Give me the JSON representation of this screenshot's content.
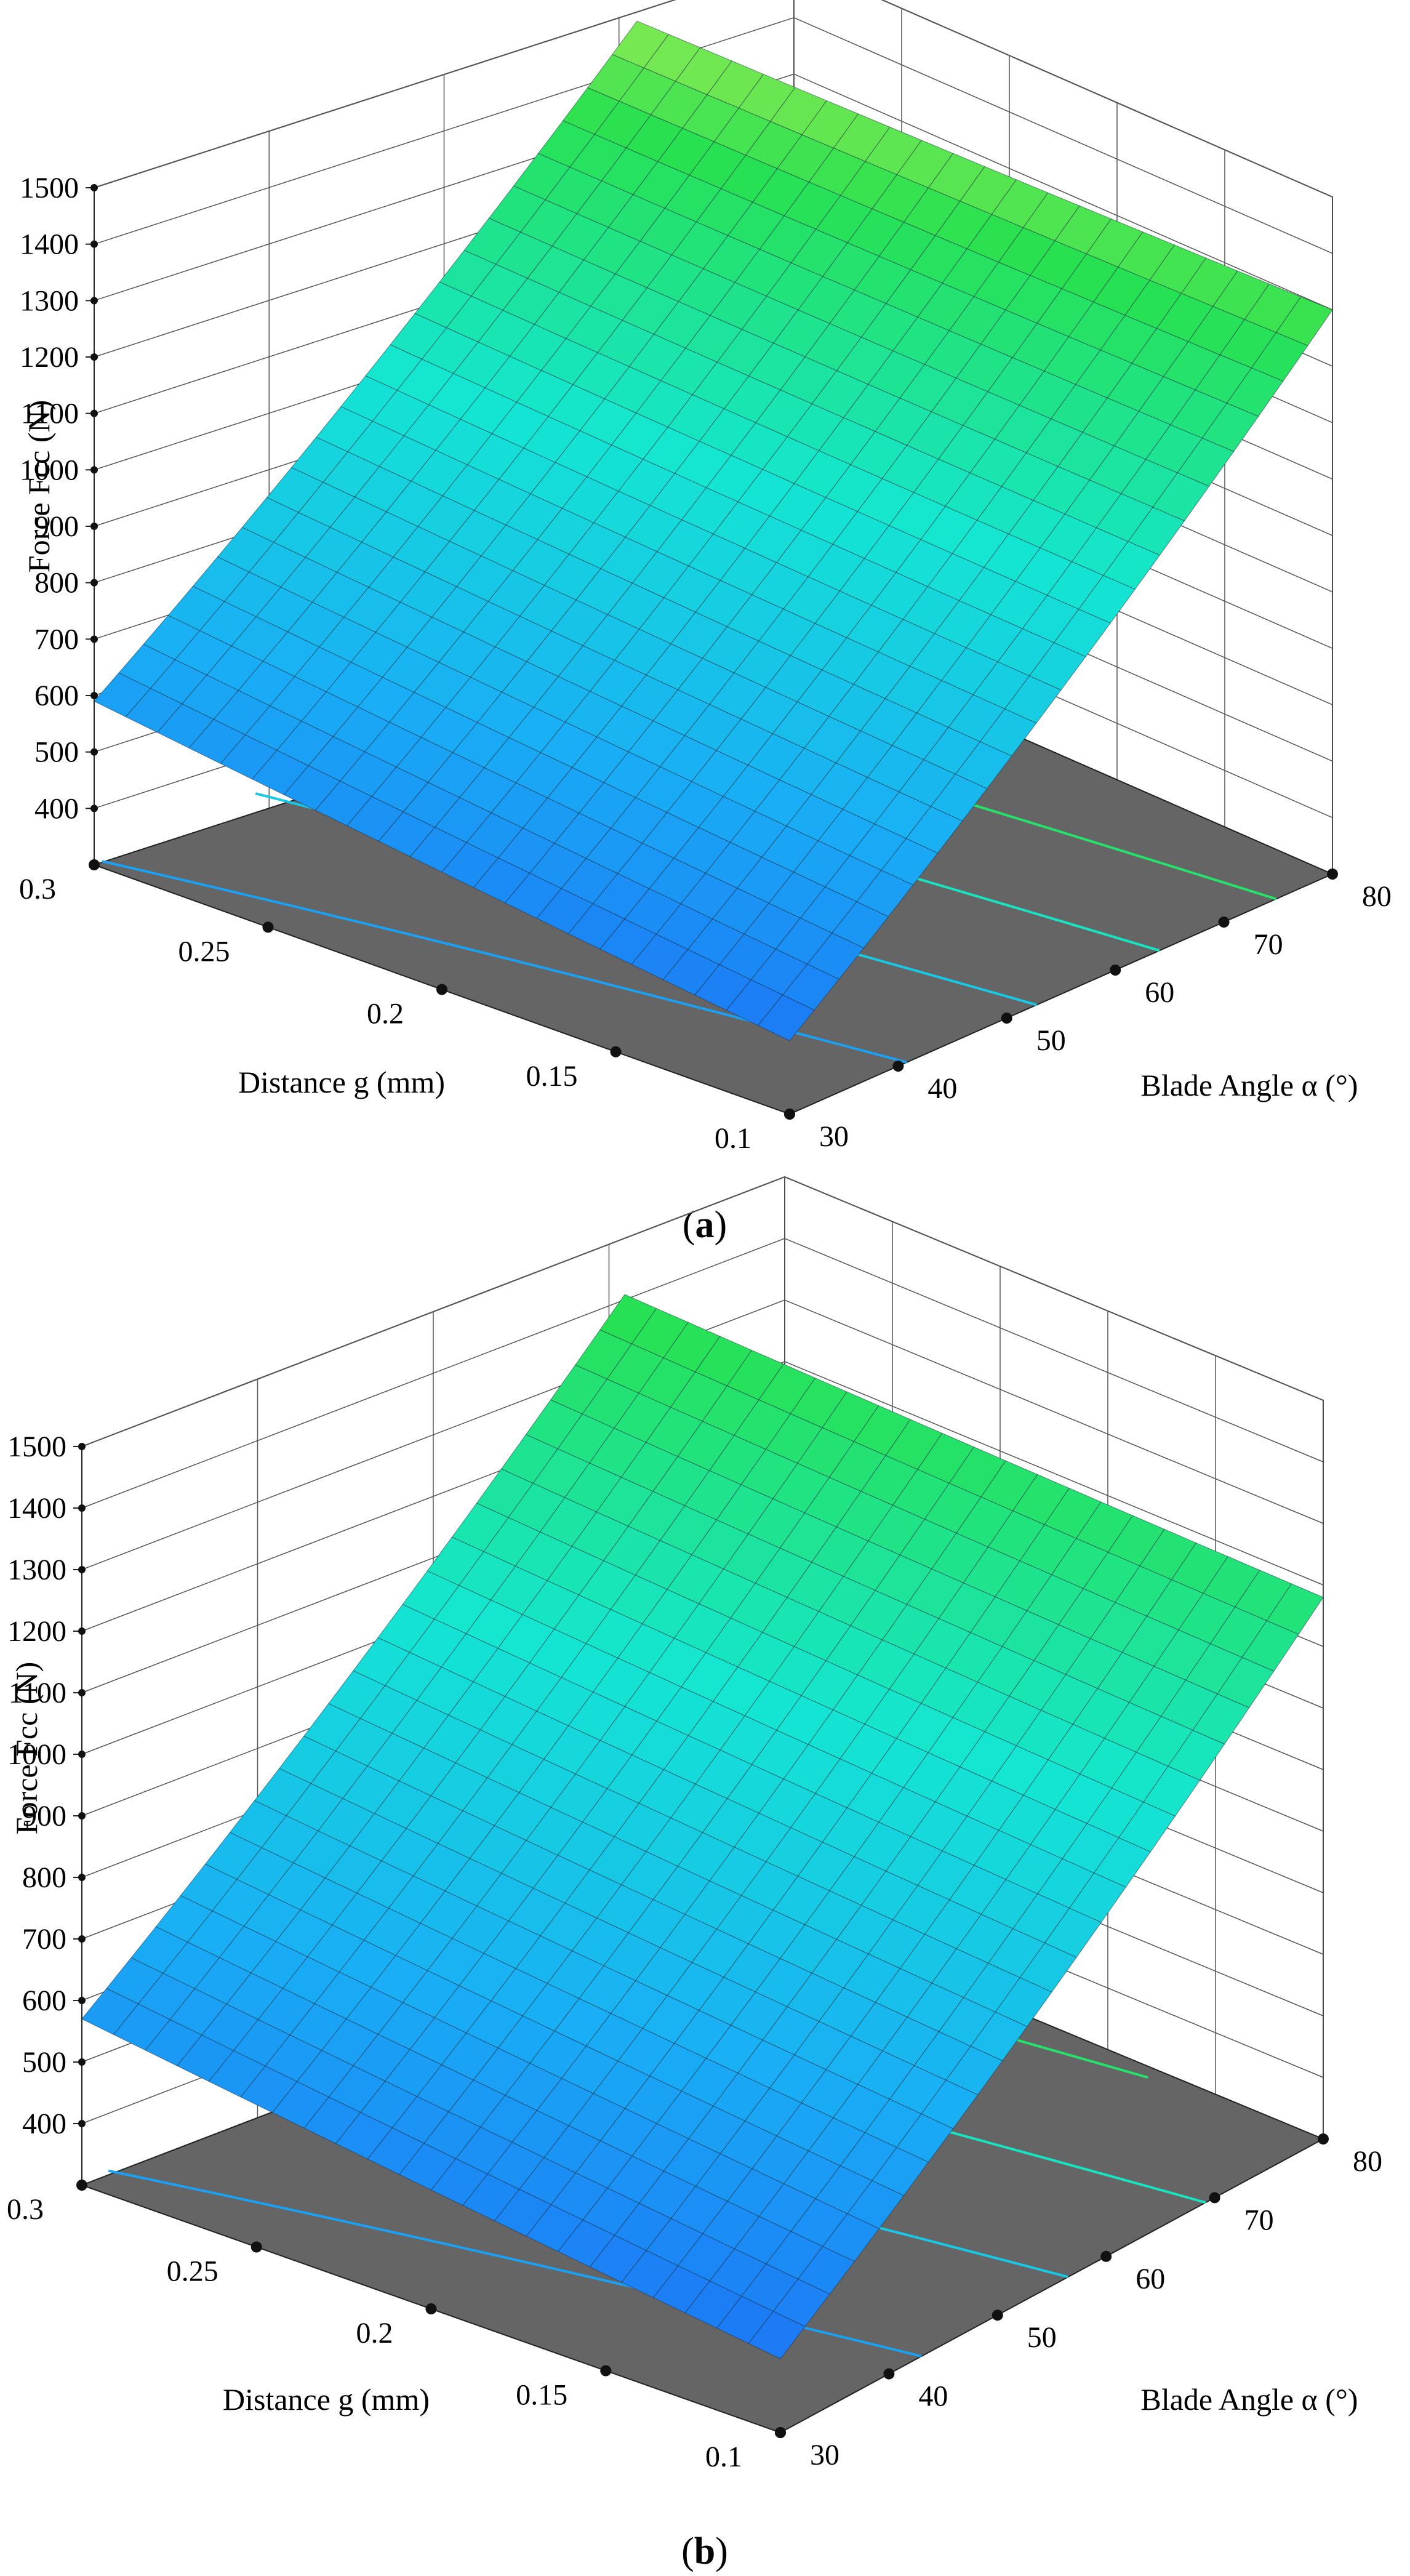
{
  "chart_data": [
    {
      "panel": "(a)",
      "caption": {
        "open": "(",
        "letter": "a",
        "close": ")"
      },
      "type": "surface3d",
      "zlabel": "Force  Fcc (N)",
      "xlabel": "Distance g (mm)",
      "ylabel": "Blade Angle α (°)",
      "z_ticks": [
        "1500",
        "1400",
        "1300",
        "1200",
        "1100",
        "1000",
        "900",
        "800",
        "700",
        "600",
        "500",
        "400"
      ],
      "z_tick_values": [
        1500,
        1400,
        1300,
        1200,
        1100,
        1000,
        900,
        800,
        700,
        600,
        500,
        400
      ],
      "g_ticks": [
        "0.3",
        "0.25",
        "0.2",
        "0.15",
        "0.1"
      ],
      "g_tick_values": [
        0.3,
        0.25,
        0.2,
        0.15,
        0.1
      ],
      "alpha_ticks": [
        "30",
        "40",
        "50",
        "60",
        "70",
        "80"
      ],
      "alpha_tick_values": [
        30,
        40,
        50,
        60,
        70,
        80
      ],
      "zlim": [
        300,
        1500
      ],
      "corner_values": {
        "g0.1_a30": 430,
        "g0.3_a30": 590,
        "g0.1_a80": 1300,
        "g0.3_a80": 1370
      },
      "contour_levels": [
        600,
        800,
        1000,
        1200,
        1400
      ]
    },
    {
      "panel": "(b)",
      "caption": {
        "open": "(",
        "letter": "b",
        "close": ")"
      },
      "type": "surface3d",
      "zlabel": "Force  Fcc (N)",
      "xlabel": "Distance g (mm)",
      "ylabel": "Blade Angle α (°)",
      "z_ticks": [
        "1500",
        "1400",
        "1300",
        "1200",
        "1100",
        "1000",
        "900",
        "800",
        "700",
        "600",
        "500",
        "400"
      ],
      "z_tick_values": [
        1500,
        1400,
        1300,
        1200,
        1100,
        1000,
        900,
        800,
        700,
        600,
        500,
        400
      ],
      "g_ticks": [
        "0.3",
        "0.25",
        "0.2",
        "0.15",
        "0.1"
      ],
      "g_tick_values": [
        0.3,
        0.25,
        0.2,
        0.15,
        0.1
      ],
      "alpha_ticks": [
        "30",
        "40",
        "50",
        "60",
        "70",
        "80"
      ],
      "alpha_tick_values": [
        30,
        40,
        50,
        60,
        70,
        80
      ],
      "zlim": [
        300,
        1500
      ],
      "corner_values": {
        "g0.1_a30": 420,
        "g0.3_a30": 570,
        "g0.1_a80": 1180,
        "g0.3_a80": 1270
      },
      "contour_levels": [
        600,
        800,
        1000,
        1200
      ]
    }
  ]
}
